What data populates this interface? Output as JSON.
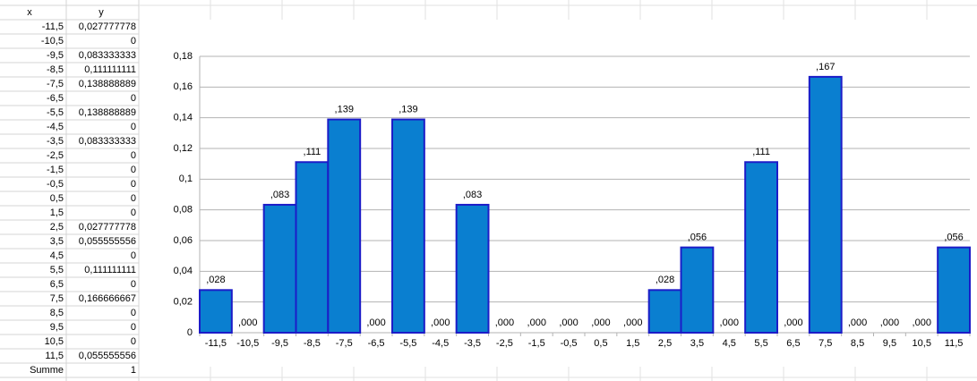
{
  "table": {
    "header": [
      "x",
      "y"
    ],
    "rows": [
      [
        "-11,5",
        "0,027777778"
      ],
      [
        "-10,5",
        "0"
      ],
      [
        "-9,5",
        "0,083333333"
      ],
      [
        "-8,5",
        "0,111111111"
      ],
      [
        "-7,5",
        "0,138888889"
      ],
      [
        "-6,5",
        "0"
      ],
      [
        "-5,5",
        "0,138888889"
      ],
      [
        "-4,5",
        "0"
      ],
      [
        "-3,5",
        "0,083333333"
      ],
      [
        "-2,5",
        "0"
      ],
      [
        "-1,5",
        "0"
      ],
      [
        "-0,5",
        "0"
      ],
      [
        "0,5",
        "0"
      ],
      [
        "1,5",
        "0"
      ],
      [
        "2,5",
        "0,027777778"
      ],
      [
        "3,5",
        "0,055555556"
      ],
      [
        "4,5",
        "0"
      ],
      [
        "5,5",
        "0,111111111"
      ],
      [
        "6,5",
        "0"
      ],
      [
        "7,5",
        "0,166666667"
      ],
      [
        "8,5",
        "0"
      ],
      [
        "9,5",
        "0"
      ],
      [
        "10,5",
        "0"
      ],
      [
        "11,5",
        "0,055555556"
      ],
      [
        "Summe",
        "1"
      ]
    ]
  },
  "chart_data": {
    "type": "bar",
    "categories": [
      "-11,5",
      "-10,5",
      "-9,5",
      "-8,5",
      "-7,5",
      "-6,5",
      "-5,5",
      "-4,5",
      "-3,5",
      "-2,5",
      "-1,5",
      "-0,5",
      "0,5",
      "1,5",
      "2,5",
      "3,5",
      "4,5",
      "5,5",
      "6,5",
      "7,5",
      "8,5",
      "9,5",
      "10,5",
      "11,5"
    ],
    "values": [
      0.027777778,
      0,
      0.083333333,
      0.111111111,
      0.138888889,
      0,
      0.138888889,
      0,
      0.083333333,
      0,
      0,
      0,
      0,
      0,
      0.027777778,
      0.055555556,
      0,
      0.111111111,
      0,
      0.166666667,
      0,
      0,
      0,
      0.055555556
    ],
    "value_labels": [
      ",028",
      ",000",
      ",083",
      ",111",
      ",139",
      ",000",
      ",139",
      ",000",
      ",083",
      ",000",
      ",000",
      ",000",
      ",000",
      ",000",
      ",028",
      ",056",
      ",000",
      ",111",
      ",000",
      ",167",
      ",000",
      ",000",
      ",000",
      ",056"
    ],
    "color": "#0a7fd0",
    "edge_color": "#1c1cc8",
    "ylim": [
      0,
      0.18
    ],
    "yticks": [
      0,
      {
        "value": 0.02,
        "label": "0,02"
      },
      {
        "value": 0.04,
        "label": "0,04"
      },
      {
        "value": 0.06,
        "label": "0,06"
      },
      {
        "value": 0.08,
        "label": "0,08"
      },
      {
        "value": 0.1,
        "label": "0,1"
      },
      {
        "value": 0.12,
        "label": "0,12"
      },
      {
        "value": 0.14,
        "label": "0,14"
      },
      {
        "value": 0.16,
        "label": "0,16"
      },
      {
        "value": 0.18,
        "label": "0,18"
      }
    ],
    "grid": true
  }
}
